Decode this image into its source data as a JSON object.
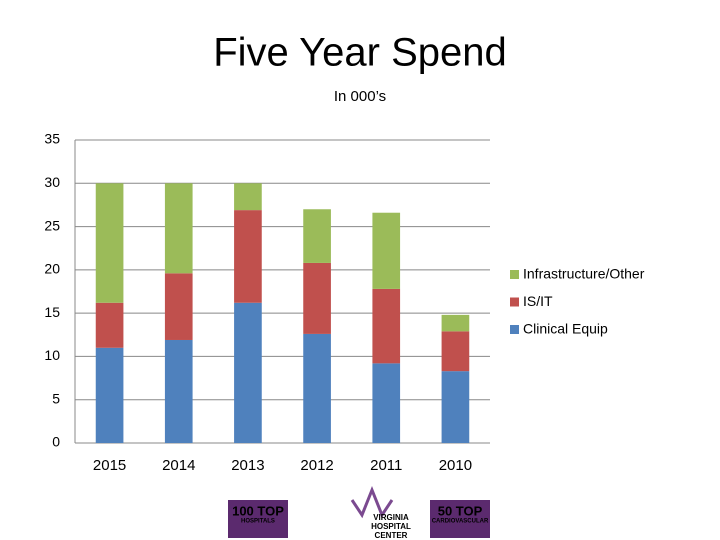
{
  "chart_data": {
    "type": "stacked_bar",
    "title": "Five Year Spend",
    "subtitle": "In 000’s",
    "categories": [
      "2015",
      "2014",
      "2013",
      "2012",
      "2011",
      "2010"
    ],
    "series": [
      {
        "name": "Clinical Equip",
        "color": "#4f81bd",
        "values": [
          11,
          11.9,
          16.2,
          12.6,
          9.2,
          8.3
        ]
      },
      {
        "name": "IS/IT",
        "color": "#c0504d",
        "values": [
          5.2,
          7.7,
          10.7,
          8.2,
          8.6,
          4.6
        ]
      },
      {
        "name": "Infrastructure/Other",
        "color": "#9bbb59",
        "values": [
          13.8,
          10.4,
          3.1,
          6.2,
          8.8,
          1.9
        ]
      }
    ],
    "ylim": [
      0,
      35
    ],
    "yticks": [
      0,
      5,
      10,
      15,
      20,
      25,
      30,
      35
    ],
    "grid": true,
    "legend": "right"
  },
  "footer": {
    "logos": [
      {
        "lines": [
          "100 TOP",
          "HOSPITALS"
        ]
      },
      {
        "lines": [
          "VIRGINIA",
          "HOSPITAL",
          "CENTER"
        ]
      },
      {
        "lines": [
          "50 TOP",
          "CARDIOVASCULAR"
        ]
      }
    ]
  }
}
